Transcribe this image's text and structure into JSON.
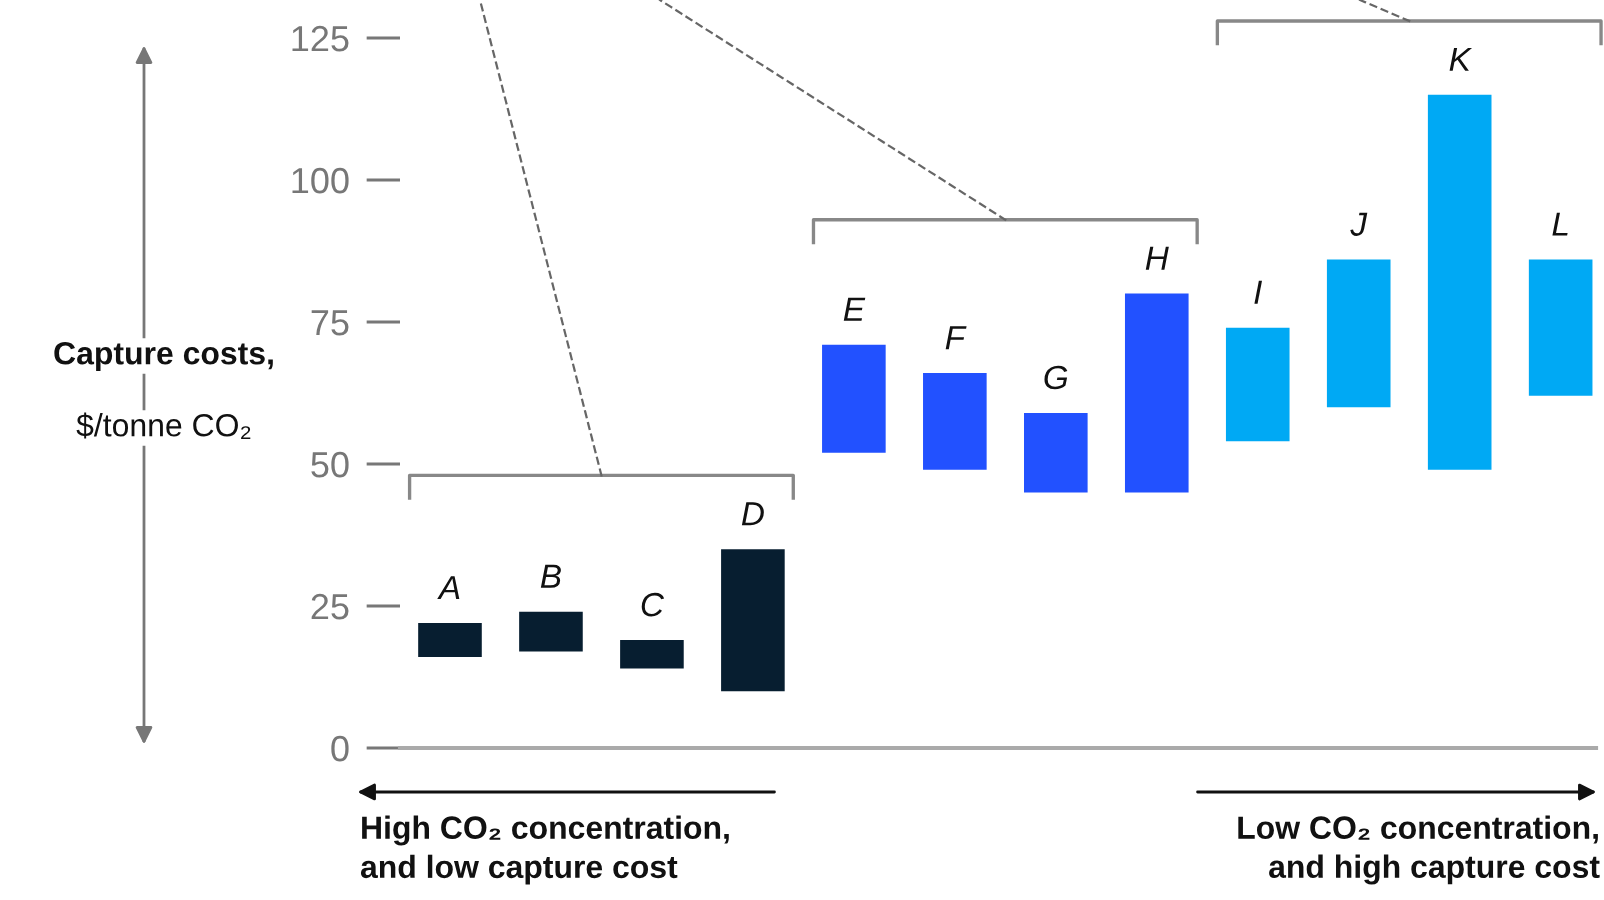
{
  "chart_data": {
    "type": "bar",
    "categories": [
      "A",
      "B",
      "C",
      "D",
      "E",
      "F",
      "G",
      "H",
      "I",
      "J",
      "K",
      "L"
    ],
    "base": [
      16,
      17,
      14,
      10,
      52,
      49,
      45,
      45,
      54,
      60,
      49,
      62
    ],
    "values": [
      6,
      7,
      5,
      25,
      19,
      17,
      14,
      35,
      20,
      26,
      66,
      24
    ],
    "colors": [
      "#071e30",
      "#071e30",
      "#071e30",
      "#071e30",
      "#2251ff",
      "#2251ff",
      "#2251ff",
      "#2251ff",
      "#00a9f4",
      "#00a9f4",
      "#00a9f4",
      "#00a9f4"
    ],
    "ylim": [
      0,
      125
    ],
    "yticks": [
      0,
      25,
      50,
      75,
      100,
      125
    ],
    "ylabel": "Capture costs,\n$/tonne CO₂",
    "annotations": [
      "High CO₂ concentration,\nand low capture cost",
      "Low CO₂ concentration,\nand high capture cost"
    ],
    "grid": false
  }
}
